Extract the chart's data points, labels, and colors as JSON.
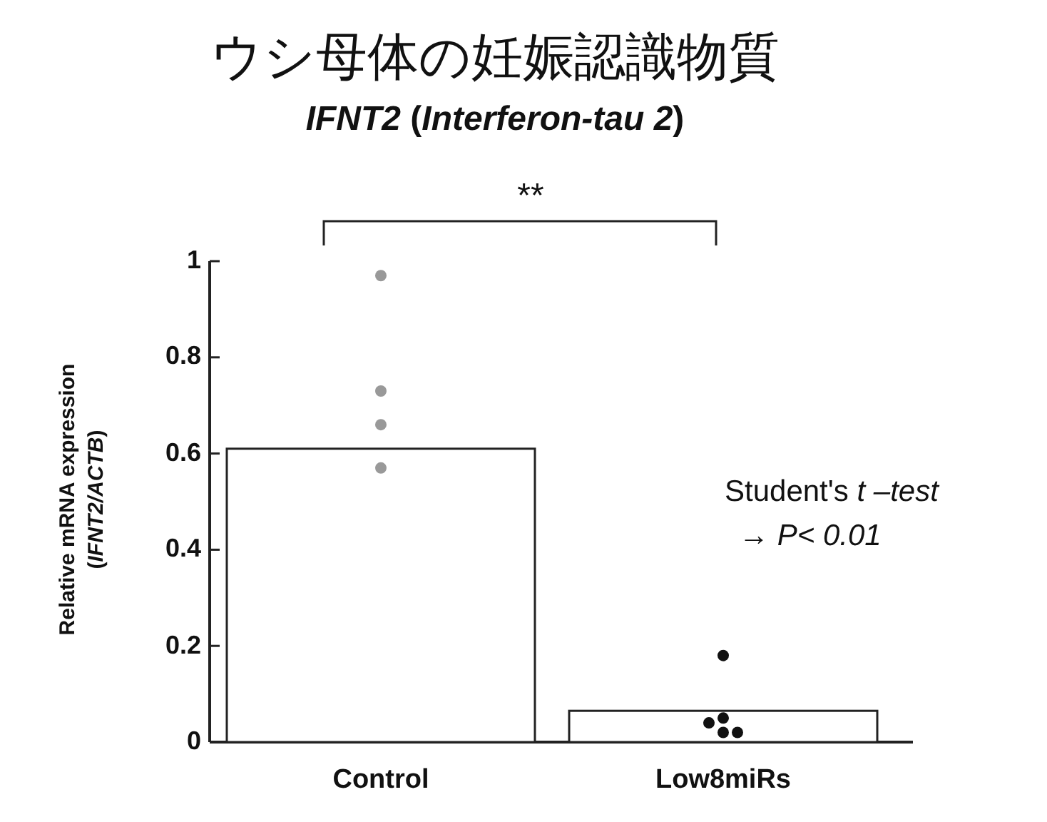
{
  "chart_data": {
    "type": "bar",
    "title": "ウシ母体の妊娠認識物質",
    "subtitle": "*IFNT2* (*Interferon-tau 2*)",
    "ylabel": "Relative mRNA expression (*IFNT2/ACTB*)",
    "categories": [
      "Control",
      "Low8miRs"
    ],
    "ylim": [
      0,
      1
    ],
    "yticks": [
      0,
      0.2,
      0.4,
      0.6,
      0.8,
      1
    ],
    "marker": "circle",
    "series": [
      {
        "color": "#ffffff",
        "values": [
          0.61,
          0.065
        ]
      },
      {
        "type": "scatter",
        "x": [
          "Control",
          "Control",
          "Control",
          "Control",
          "Low8miRs",
          "Low8miRs",
          "Low8miRs",
          "Low8miRs",
          "Low8miRs"
        ],
        "values": [
          0.97,
          0.73,
          0.66,
          0.57,
          0.18,
          0.05,
          0.02,
          0.02,
          0.04
        ],
        "colors": [
          "#999999",
          "#999999",
          "#999999",
          "#999999",
          "#111111",
          "#111111",
          "#111111",
          "#111111",
          "#111111"
        ]
      }
    ],
    "annotations": [
      "**",
      "Student's *t –test*",
      "→ *P< 0.01*"
    ]
  }
}
